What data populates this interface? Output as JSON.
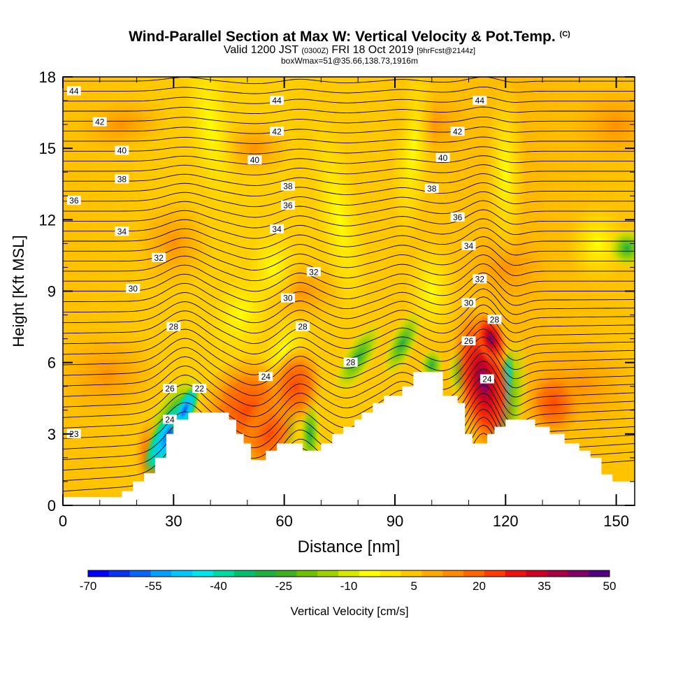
{
  "header": {
    "title": "Wind-Parallel Section at Max W: Vertical Velocity & Pot.Temp.",
    "title_mark": "(C)",
    "subtitle_a": "Valid 1200 JST",
    "subtitle_b": "(0300Z)",
    "subtitle_c": "FRI 18 Oct 2019",
    "subtitle_d": "[9hrFcst@2144z]",
    "subtitle2": "boxWmax=51@35.66,138.73,1916m"
  },
  "chart_data": {
    "type": "heatmap",
    "xlabel": "Distance [nm]",
    "ylabel": "Height [Kft MSL]",
    "xlim": [
      0,
      155
    ],
    "ylim": [
      0,
      18
    ],
    "x_ticks": [
      "0",
      "30",
      "60",
      "90",
      "120",
      "150"
    ],
    "y_ticks": [
      "0",
      "3",
      "6",
      "9",
      "12",
      "15",
      "18"
    ],
    "colorbar": {
      "label": "Vertical Velocity [cm/s]",
      "tick_labels": [
        "-70",
        "-55",
        "-40",
        "-25",
        "-10",
        "5",
        "20",
        "35",
        "50"
      ],
      "levels": [
        -70,
        -65,
        -60,
        -55,
        -50,
        -45,
        -40,
        -35,
        -30,
        -25,
        -20,
        -15,
        -10,
        -5,
        0,
        5,
        10,
        15,
        20,
        25,
        30,
        35,
        40,
        45,
        50
      ],
      "colors": [
        "#0000ff",
        "#0a32f0",
        "#0b64f4",
        "#00a0ff",
        "#00c8ff",
        "#00e6f0",
        "#00d9a0",
        "#00c070",
        "#20b040",
        "#40b020",
        "#70c000",
        "#a0d200",
        "#d8e800",
        "#ffff00",
        "#ffe600",
        "#ffc800",
        "#ffaa00",
        "#ff8c00",
        "#ff6600",
        "#ff3c00",
        "#ee1111",
        "#cc0022",
        "#aa0044",
        "#800066",
        "#500080"
      ]
    },
    "terrain": [
      [
        0,
        0.35
      ],
      [
        16,
        0.35
      ],
      [
        16,
        0.6
      ],
      [
        19,
        0.6
      ],
      [
        19,
        1.0
      ],
      [
        22,
        1.0
      ],
      [
        22,
        1.35
      ],
      [
        25,
        1.35
      ],
      [
        25,
        2.0
      ],
      [
        28,
        2.0
      ],
      [
        28,
        3.0
      ],
      [
        30,
        3.0
      ],
      [
        30,
        3.6
      ],
      [
        34,
        3.6
      ],
      [
        34,
        3.9
      ],
      [
        45,
        3.9
      ],
      [
        45,
        3.6
      ],
      [
        47,
        3.6
      ],
      [
        47,
        3.0
      ],
      [
        49,
        3.0
      ],
      [
        49,
        2.6
      ],
      [
        51,
        2.6
      ],
      [
        51,
        1.9
      ],
      [
        55,
        1.9
      ],
      [
        55,
        2.3
      ],
      [
        58,
        2.3
      ],
      [
        58,
        2.6
      ],
      [
        62,
        2.6
      ],
      [
        62,
        2.6
      ],
      [
        65,
        2.6
      ],
      [
        65,
        2.3
      ],
      [
        70,
        2.3
      ],
      [
        70,
        2.6
      ],
      [
        73,
        2.6
      ],
      [
        73,
        3.0
      ],
      [
        76,
        3.0
      ],
      [
        76,
        3.3
      ],
      [
        79,
        3.3
      ],
      [
        79,
        3.6
      ],
      [
        81,
        3.6
      ],
      [
        81,
        3.9
      ],
      [
        84,
        3.9
      ],
      [
        84,
        4.3
      ],
      [
        87,
        4.3
      ],
      [
        87,
        4.6
      ],
      [
        92,
        4.6
      ],
      [
        92,
        5.0
      ],
      [
        95,
        5.0
      ],
      [
        95,
        5.6
      ],
      [
        99,
        5.6
      ],
      [
        99,
        5.6
      ],
      [
        103,
        5.6
      ],
      [
        103,
        4.6
      ],
      [
        107,
        4.6
      ],
      [
        107,
        4.3
      ],
      [
        109,
        4.3
      ],
      [
        109,
        3.0
      ],
      [
        111,
        3.0
      ],
      [
        111,
        2.6
      ],
      [
        115,
        2.6
      ],
      [
        115,
        3.0
      ],
      [
        117,
        3.0
      ],
      [
        117,
        3.3
      ],
      [
        120,
        3.3
      ],
      [
        120,
        3.6
      ],
      [
        128,
        3.6
      ],
      [
        128,
        3.3
      ],
      [
        132,
        3.3
      ],
      [
        132,
        3.0
      ],
      [
        136,
        3.0
      ],
      [
        136,
        2.6
      ],
      [
        140,
        2.6
      ],
      [
        140,
        2.3
      ],
      [
        143,
        2.3
      ],
      [
        143,
        2.0
      ],
      [
        146,
        2.0
      ],
      [
        146,
        1.3
      ],
      [
        149,
        1.3
      ],
      [
        149,
        1.0
      ],
      [
        155,
        1.0
      ]
    ],
    "contour_labels": [
      {
        "text": "44",
        "x": 3,
        "y": 17.4
      },
      {
        "text": "44",
        "x": 58,
        "y": 17.0
      },
      {
        "text": "44",
        "x": 113,
        "y": 17.0
      },
      {
        "text": "42",
        "x": 10,
        "y": 16.1
      },
      {
        "text": "42",
        "x": 58,
        "y": 15.7
      },
      {
        "text": "42",
        "x": 107,
        "y": 15.7
      },
      {
        "text": "40",
        "x": 16,
        "y": 14.9
      },
      {
        "text": "40",
        "x": 52,
        "y": 14.5
      },
      {
        "text": "40",
        "x": 103,
        "y": 14.6
      },
      {
        "text": "38",
        "x": 16,
        "y": 13.7
      },
      {
        "text": "38",
        "x": 61,
        "y": 13.4
      },
      {
        "text": "38",
        "x": 100,
        "y": 13.3
      },
      {
        "text": "36",
        "x": 3,
        "y": 12.8
      },
      {
        "text": "36",
        "x": 61,
        "y": 12.6
      },
      {
        "text": "36",
        "x": 107,
        "y": 12.1
      },
      {
        "text": "34",
        "x": 16,
        "y": 11.5
      },
      {
        "text": "34",
        "x": 58,
        "y": 11.6
      },
      {
        "text": "34",
        "x": 110,
        "y": 10.9
      },
      {
        "text": "32",
        "x": 26,
        "y": 10.4
      },
      {
        "text": "32",
        "x": 68,
        "y": 9.8
      },
      {
        "text": "32",
        "x": 113,
        "y": 9.5
      },
      {
        "text": "30",
        "x": 19,
        "y": 9.1
      },
      {
        "text": "30",
        "x": 61,
        "y": 8.7
      },
      {
        "text": "30",
        "x": 110,
        "y": 8.5
      },
      {
        "text": "28",
        "x": 30,
        "y": 7.5
      },
      {
        "text": "28",
        "x": 65,
        "y": 7.5
      },
      {
        "text": "28",
        "x": 78,
        "y": 6.0
      },
      {
        "text": "28",
        "x": 117,
        "y": 7.8
      },
      {
        "text": "26",
        "x": 110,
        "y": 6.9
      },
      {
        "text": "26",
        "x": 29,
        "y": 4.9
      },
      {
        "text": "24",
        "x": 55,
        "y": 5.4
      },
      {
        "text": "24",
        "x": 115,
        "y": 5.3
      },
      {
        "text": "24",
        "x": 29,
        "y": 3.6
      },
      {
        "text": "22",
        "x": 37,
        "y": 4.9
      },
      {
        "text": "23",
        "x": 3,
        "y": 3.0
      }
    ]
  }
}
